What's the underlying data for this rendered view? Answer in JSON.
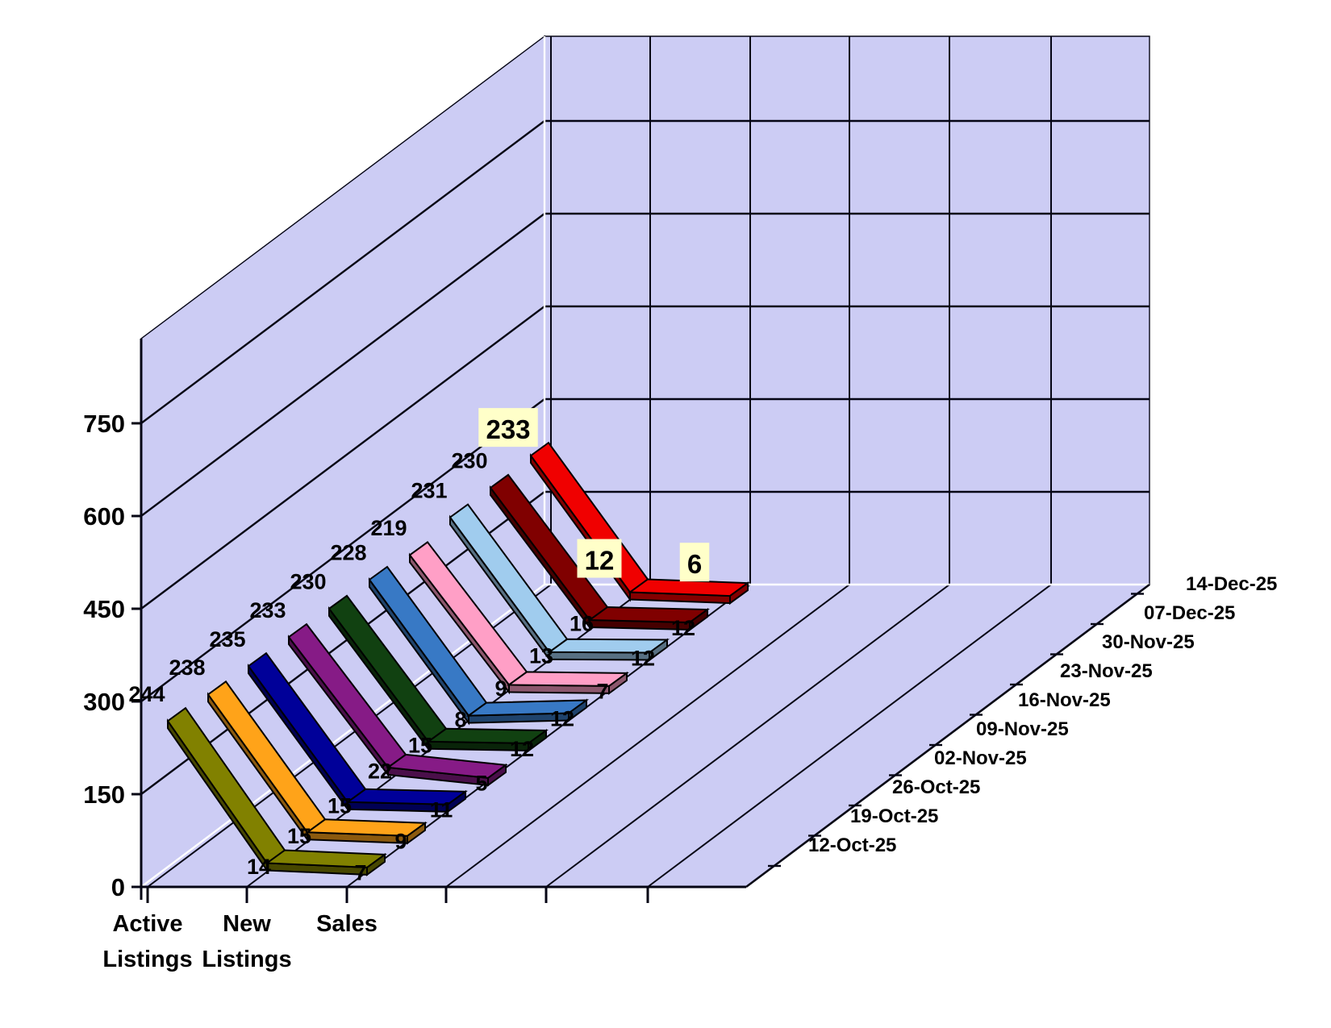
{
  "page": {
    "background": "#FFFFFF",
    "title": ""
  },
  "chart_data": {
    "type": "line",
    "style": "3d-ribbon-line-chart",
    "title": "",
    "legend": "none",
    "grid": true,
    "wall_color": "#CCCCF4",
    "gridline_color": "#050514",
    "zero_line_color": "#FFFFFF",
    "highlight_box_color": "#FFFFC9",
    "categories": [
      "Active Listings",
      "New Listings",
      "Sales"
    ],
    "category_axis_labels": [
      [
        "Active",
        "Listings"
      ],
      [
        "New",
        "Listings"
      ],
      [
        "Sales"
      ]
    ],
    "value_axis": {
      "min": 0,
      "max": 900,
      "tick_interval": 150,
      "ticks": [
        0,
        150,
        300,
        450,
        600,
        750
      ],
      "tick_labels": [
        "0",
        "150",
        "300",
        "450",
        "600",
        "750"
      ]
    },
    "series_axis_dates": [
      "12-Oct-25",
      "19-Oct-25",
      "26-Oct-25",
      "02-Nov-25",
      "09-Nov-25",
      "16-Nov-25",
      "23-Nov-25",
      "30-Nov-25",
      "07-Dec-25",
      "14-Dec-25"
    ],
    "series": [
      {
        "name": "12-Oct-25",
        "color": "#818100",
        "highlighted": false,
        "values": {
          "active_listings": 244,
          "new_listings": 14,
          "sales": 7
        }
      },
      {
        "name": "19-Oct-25",
        "color": "#FFA319",
        "highlighted": false,
        "values": {
          "active_listings": 238,
          "new_listings": 15,
          "sales": 9
        }
      },
      {
        "name": "26-Oct-25",
        "color": "#000099",
        "highlighted": false,
        "values": {
          "active_listings": 235,
          "new_listings": 15,
          "sales": 11
        }
      },
      {
        "name": "02-Nov-25",
        "color": "#861B86",
        "highlighted": false,
        "values": {
          "active_listings": 233,
          "new_listings": 22,
          "sales": 5
        }
      },
      {
        "name": "09-Nov-25",
        "color": "#114111",
        "highlighted": false,
        "values": {
          "active_listings": 230,
          "new_listings": 15,
          "sales": 12
        }
      },
      {
        "name": "16-Nov-25",
        "color": "#3879C5",
        "highlighted": false,
        "values": {
          "active_listings": 228,
          "new_listings": 8,
          "sales": 12
        }
      },
      {
        "name": "23-Nov-25",
        "color": "#FF9FC6",
        "highlighted": false,
        "values": {
          "active_listings": 219,
          "new_listings": 9,
          "sales": 7
        }
      },
      {
        "name": "30-Nov-25",
        "color": "#A0CCEE",
        "highlighted": false,
        "values": {
          "active_listings": 231,
          "new_listings": 13,
          "sales": 12
        }
      },
      {
        "name": "07-Dec-25",
        "color": "#800000",
        "highlighted": false,
        "values": {
          "active_listings": 230,
          "new_listings": 16,
          "sales": 12
        }
      },
      {
        "name": "14-Dec-25",
        "color": "#F00000",
        "highlighted": true,
        "values": {
          "active_listings": 233,
          "new_listings": 12,
          "sales": 6
        }
      }
    ],
    "data_labels_shown": true
  }
}
